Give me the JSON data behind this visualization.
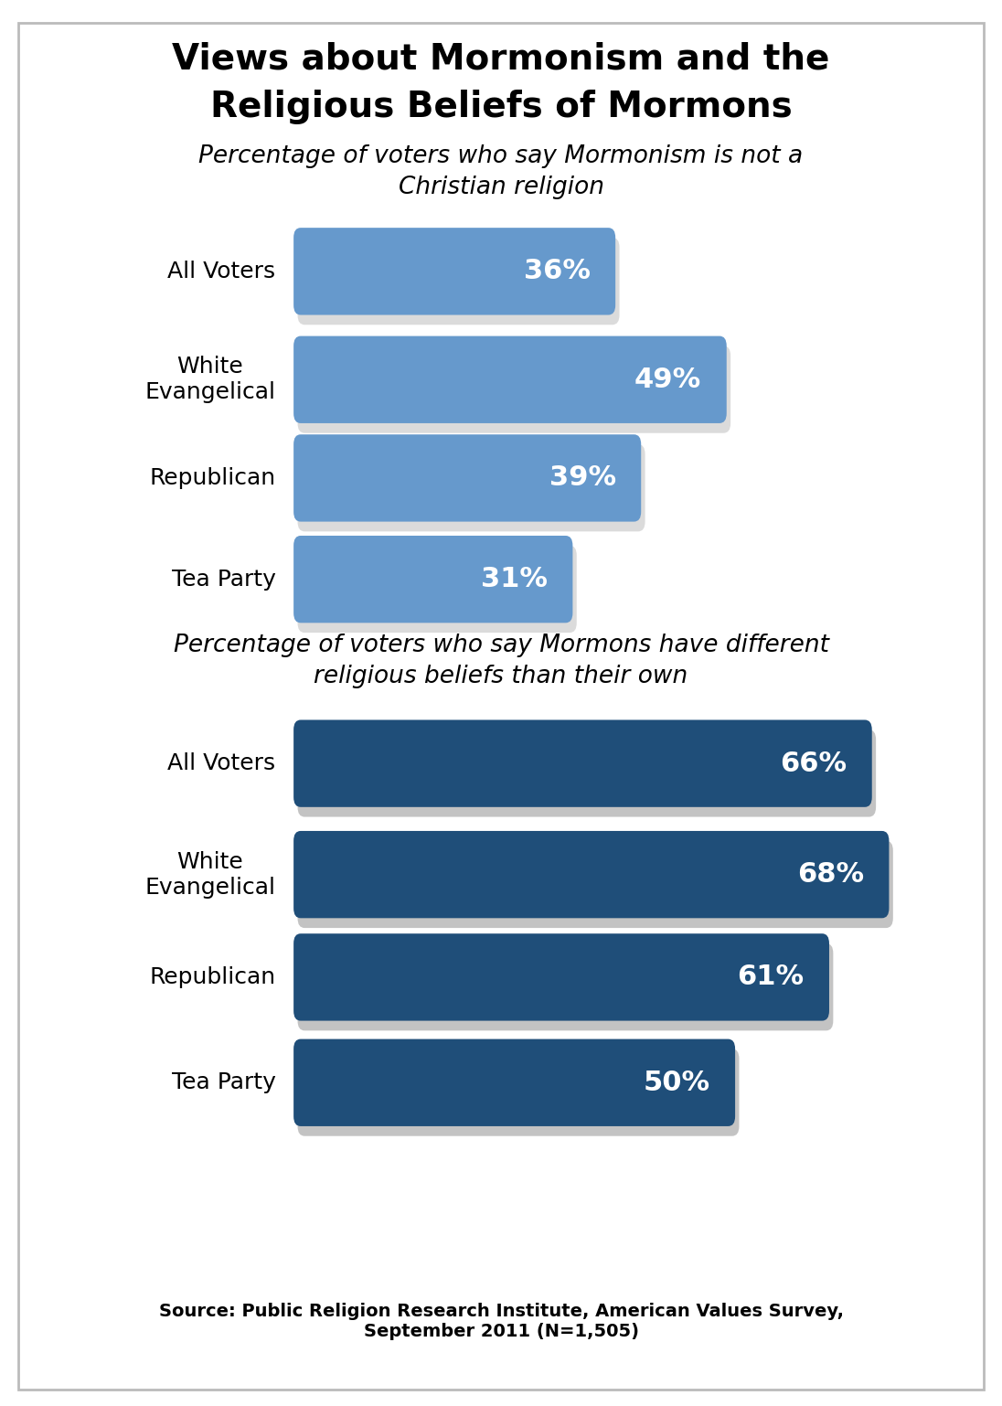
{
  "title_line1": "Views about Mormonism and the",
  "title_line2": "Religious Beliefs of Mormons",
  "subtitle1": "Percentage of voters who say Mormonism is not a\nChristian religion",
  "subtitle2": "Percentage of voters who say Mormons have different\nreligious beliefs than their own",
  "source": "Source: Public Religion Research Institute, American Values Survey,\nSeptember 2011 (N=1,505)",
  "group1_labels": [
    "All Voters",
    "White\nEvangelical",
    "Republican",
    "Tea Party"
  ],
  "group1_values": [
    36,
    49,
    39,
    31
  ],
  "group1_color": "#6699cc",
  "group2_labels": [
    "All Voters",
    "White\nEvangelical",
    "Republican",
    "Tea Party"
  ],
  "group2_values": [
    66,
    68,
    61,
    50
  ],
  "group2_color": "#1f4e79",
  "bar_max": 75,
  "text_color": "#000000",
  "bar_text_color": "#ffffff",
  "title_fontsize": 28,
  "subtitle_fontsize": 19,
  "label_fontsize": 18,
  "value_fontsize": 22,
  "source_fontsize": 14
}
